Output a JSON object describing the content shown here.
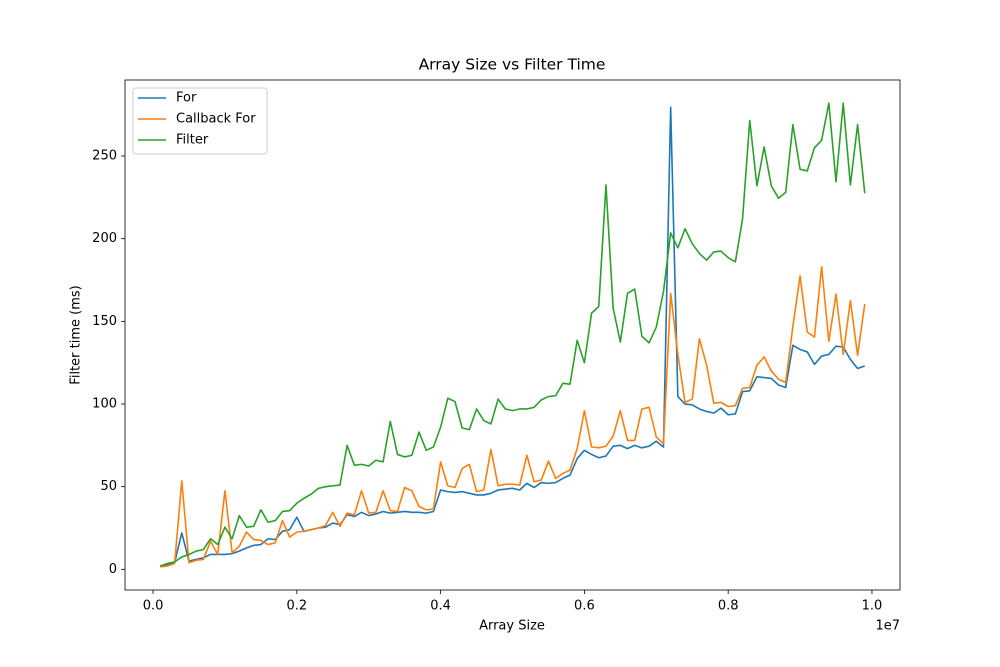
{
  "chart_data": {
    "type": "line",
    "title": "Array Size vs Filter Time",
    "x_label": "Array Size",
    "y_label": "Filter time (ms)",
    "x_offset_label": "1e7",
    "x": [
      100000,
      200000,
      300000,
      400000,
      500000,
      600000,
      700000,
      800000,
      900000,
      1000000,
      1100000,
      1200000,
      1300000,
      1400000,
      1500000,
      1600000,
      1700000,
      1800000,
      1900000,
      2000000,
      2100000,
      2200000,
      2300000,
      2400000,
      2500000,
      2600000,
      2700000,
      2800000,
      2900000,
      3000000,
      3100000,
      3200000,
      3300000,
      3400000,
      3500000,
      3600000,
      3700000,
      3800000,
      3900000,
      4000000,
      4100000,
      4200000,
      4300000,
      4400000,
      4500000,
      4600000,
      4700000,
      4800000,
      4900000,
      5000000,
      5100000,
      5200000,
      5300000,
      5400000,
      5500000,
      5600000,
      5700000,
      5800000,
      5900000,
      6000000,
      6100000,
      6200000,
      6300000,
      6400000,
      6500000,
      6600000,
      6700000,
      6800000,
      6900000,
      7000000,
      7100000,
      7200000,
      7300000,
      7400000,
      7500000,
      7600000,
      7700000,
      7800000,
      7900000,
      8000000,
      8100000,
      8200000,
      8300000,
      8400000,
      8500000,
      8600000,
      8700000,
      8800000,
      8900000,
      9000000,
      9100000,
      9200000,
      9300000,
      9400000,
      9500000,
      9600000,
      9700000,
      9800000,
      9900000
    ],
    "series": [
      {
        "name": "For",
        "color": "#1f77b4",
        "values": [
          2,
          2.5,
          4,
          22,
          5,
          6,
          7,
          9,
          9,
          9,
          9.5,
          11,
          13,
          14.5,
          15,
          18.5,
          18,
          23,
          24,
          31.5,
          23,
          24,
          25,
          25.5,
          28,
          27,
          33,
          32,
          34.5,
          32.5,
          33.5,
          35,
          34,
          34.5,
          35,
          34.5,
          34.5,
          34,
          35,
          48,
          47,
          46.5,
          47,
          46,
          45,
          45,
          46,
          48,
          48.5,
          49,
          48,
          52,
          49.5,
          52.5,
          52,
          52.5,
          55,
          57,
          67,
          72,
          69.5,
          67.5,
          68.5,
          74.5,
          75,
          73,
          75,
          73.5,
          74.5,
          77.5,
          74,
          279.5,
          104.5,
          100,
          99.5,
          97,
          95.5,
          94.5,
          97.5,
          93.5,
          94,
          107.5,
          108,
          116.5,
          116,
          115.5,
          111.5,
          110,
          135.5,
          133,
          131.5,
          124,
          129,
          130,
          135,
          134.5,
          127,
          121.5,
          123
        ]
      },
      {
        "name": "Callback For",
        "color": "#ff7f0e",
        "values": [
          1.5,
          2,
          3.5,
          53.5,
          4,
          5.5,
          6,
          17,
          9,
          47.5,
          10,
          14,
          22.5,
          18,
          17.5,
          15,
          16,
          29.5,
          19.5,
          22.5,
          23,
          24,
          25,
          26.5,
          34.5,
          26,
          34,
          33,
          47.5,
          34,
          34.5,
          47.5,
          35.5,
          35,
          49.5,
          47.5,
          38,
          36,
          36.5,
          65,
          50.5,
          49.5,
          61,
          63.5,
          47,
          48,
          72.5,
          50.5,
          51.5,
          51.5,
          51,
          69,
          53,
          54,
          65.5,
          55,
          58,
          60,
          73,
          96,
          74,
          73.5,
          74.5,
          80.5,
          96,
          78,
          78,
          97,
          98,
          80,
          76,
          167,
          130,
          101,
          103,
          139.5,
          123.5,
          100.5,
          101,
          98.5,
          99,
          109.5,
          110,
          123.5,
          128.5,
          120,
          115,
          113,
          147,
          177.5,
          143.5,
          140.5,
          183,
          138,
          166.5,
          130,
          162.5,
          129.5,
          160.5
        ]
      },
      {
        "name": "Filter",
        "color": "#2ca02c",
        "values": [
          2,
          3.5,
          4.5,
          7.5,
          9,
          11,
          12,
          18.5,
          15,
          25.5,
          18.5,
          32.5,
          25.5,
          26,
          36,
          28.5,
          29.5,
          35,
          35.5,
          40,
          43,
          45.5,
          49,
          50,
          50.5,
          51,
          75,
          63,
          63.5,
          62.5,
          66,
          65,
          89.5,
          69.5,
          68,
          69,
          83,
          72,
          74,
          86,
          103.5,
          101.5,
          85.5,
          84.5,
          97,
          90,
          88,
          103,
          97,
          96,
          97,
          97,
          98,
          102.5,
          104.5,
          105,
          112.5,
          112,
          138.5,
          125,
          155,
          159,
          232.5,
          158,
          137.5,
          167,
          169.5,
          141,
          137,
          146.5,
          168,
          203.5,
          194.5,
          206,
          197,
          191,
          187,
          192,
          192.5,
          188.5,
          186,
          212,
          271.5,
          232,
          255.5,
          232,
          224.5,
          228,
          269,
          242,
          241,
          255,
          259.5,
          282,
          234.5,
          282,
          232.5,
          269,
          227.5
        ]
      }
    ],
    "xlim": [
      -390000,
      10390000
    ],
    "xticks": [
      {
        "value": 0,
        "label": "0.0"
      },
      {
        "value": 2000000,
        "label": "0.2"
      },
      {
        "value": 4000000,
        "label": "0.4"
      },
      {
        "value": 6000000,
        "label": "0.6"
      },
      {
        "value": 8000000,
        "label": "0.8"
      },
      {
        "value": 10000000,
        "label": "1.0"
      }
    ],
    "ylim": [
      -12.5,
      296
    ],
    "yticks": [
      0,
      50,
      100,
      150,
      200,
      250
    ],
    "legend": "upper left",
    "grid": false
  }
}
